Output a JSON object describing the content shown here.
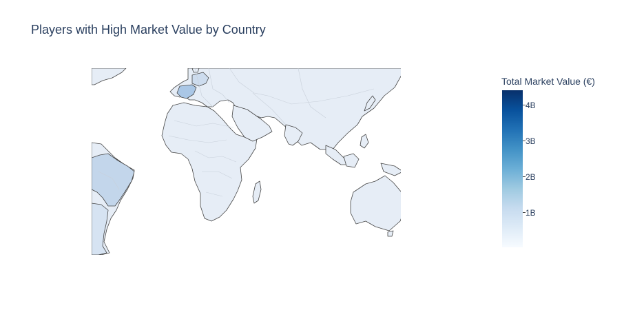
{
  "title": "Players with High Market Value by Country",
  "colorbar": {
    "title": "Total Market Value (€)",
    "ticks": [
      "4B",
      "3B",
      "2B",
      "1B"
    ],
    "colorscale": [
      "#f7fbff",
      "#deebf7",
      "#c6dbef",
      "#9ecae1",
      "#6baed6",
      "#4292c6",
      "#2171b5",
      "#08519c",
      "#08306b"
    ],
    "range": [
      0,
      4400000000
    ]
  },
  "map": {
    "land_color": "#e6edf6",
    "border_color": "#c8d0da",
    "coastline_color": "#444444",
    "highlighted": {
      "Spain": "#aac7e6",
      "France": "#cddcee",
      "Brazil": "#c3d6eb",
      "Argentina": "#d6e3f2"
    }
  }
}
